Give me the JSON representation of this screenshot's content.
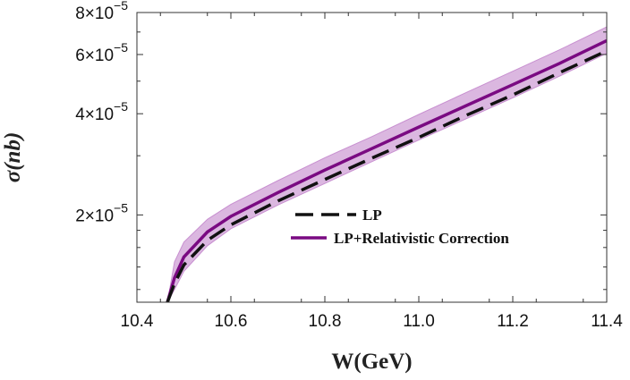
{
  "chart_data": {
    "type": "line",
    "xlabel": "W(GeV)",
    "ylabel": "σ(nb)",
    "xlim": [
      10.4,
      11.4
    ],
    "ylim": [
      1.1e-05,
      8e-05
    ],
    "y_scale": "log",
    "grid": false,
    "legend_position": "center-right",
    "x_ticks": [
      {
        "value": 10.4,
        "label": "10.4"
      },
      {
        "value": 10.6,
        "label": "10.6"
      },
      {
        "value": 10.8,
        "label": "10.8"
      },
      {
        "value": 11.0,
        "label": "11.0"
      },
      {
        "value": 11.2,
        "label": "11.2"
      },
      {
        "value": 11.4,
        "label": "11.4"
      }
    ],
    "y_ticks": [
      {
        "value": 2e-05,
        "mantissa": "2",
        "base": "×10",
        "exponent": "−5"
      },
      {
        "value": 4e-05,
        "mantissa": "4",
        "base": "×10",
        "exponent": "−5"
      },
      {
        "value": 6e-05,
        "mantissa": "6",
        "base": "×10",
        "exponent": "−5"
      },
      {
        "value": 8e-05,
        "mantissa": "8",
        "base": "×10",
        "exponent": "−5"
      }
    ],
    "y_minor_ticks": [
      1.2e-05,
      1.4e-05,
      1.6e-05,
      1.8e-05,
      3e-05,
      5e-05,
      7e-05
    ],
    "x": [
      10.465,
      10.48,
      10.5,
      10.55,
      10.6,
      10.7,
      10.8,
      10.9,
      11.0,
      11.1,
      11.2,
      11.3,
      11.4
    ],
    "series": [
      {
        "name": "LP",
        "style": "dashed",
        "color": "#111111",
        "values": [
          1.1e-05,
          1.25e-05,
          1.42e-05,
          1.68e-05,
          1.87e-05,
          2.2e-05,
          2.55e-05,
          2.95e-05,
          3.4e-05,
          3.95e-05,
          4.55e-05,
          5.3e-05,
          6.15e-05
        ]
      },
      {
        "name": "LP+Relativistic Correction",
        "style": "solid",
        "color": "#7a0a82",
        "values": [
          1.1e-05,
          1.3e-05,
          1.5e-05,
          1.78e-05,
          1.98e-05,
          2.33e-05,
          2.72e-05,
          3.15e-05,
          3.65e-05,
          4.22e-05,
          4.88e-05,
          5.65e-05,
          6.6e-05
        ]
      }
    ],
    "band": {
      "color": "#c890d0",
      "lower": [
        1.1e-05,
        1.2e-05,
        1.36e-05,
        1.62e-05,
        1.82e-05,
        2.14e-05,
        2.48e-05,
        2.88e-05,
        3.34e-05,
        3.86e-05,
        4.46e-05,
        5.18e-05,
        6.05e-05
      ],
      "upper": [
        1.1e-05,
        1.45e-05,
        1.66e-05,
        1.94e-05,
        2.15e-05,
        2.53e-05,
        2.96e-05,
        3.42e-05,
        3.98e-05,
        4.62e-05,
        5.35e-05,
        6.2e-05,
        7.25e-05
      ]
    }
  }
}
